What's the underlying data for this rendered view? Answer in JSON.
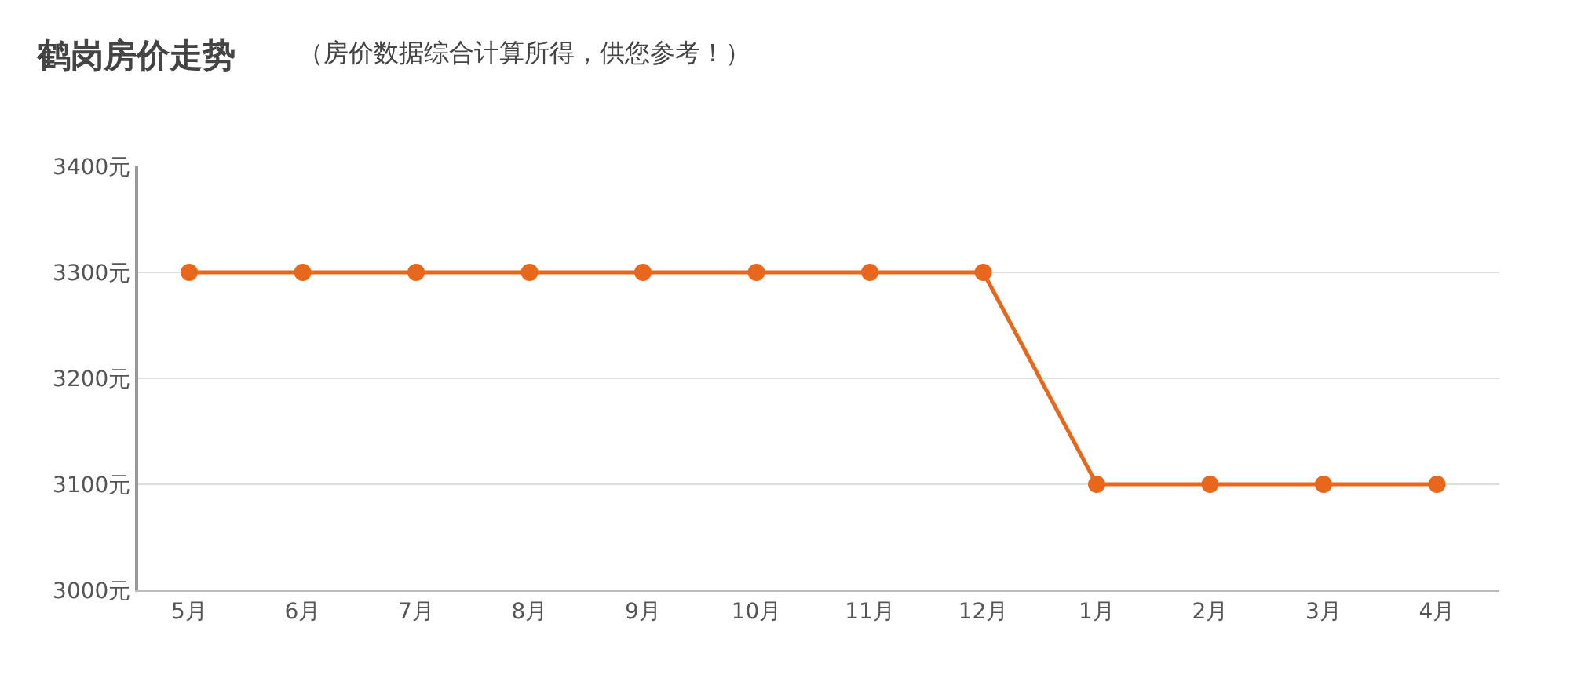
{
  "chart_data": {
    "type": "line",
    "title": "鹤岗房价走势",
    "subtitle": "（房价数据综合计算所得，供您参考！）",
    "categories": [
      "5月",
      "6月",
      "7月",
      "8月",
      "9月",
      "10月",
      "11月",
      "12月",
      "1月",
      "2月",
      "3月",
      "4月"
    ],
    "series": [
      {
        "color": "#e8671b",
        "values": [
          3300,
          3300,
          3300,
          3300,
          3300,
          3300,
          3300,
          3300,
          3100,
          3100,
          3100,
          3100
        ]
      }
    ],
    "ylim": [
      3000,
      3400
    ],
    "yticks": [
      {
        "value": 3000,
        "label": "3000元"
      },
      {
        "value": 3100,
        "label": "3100元"
      },
      {
        "value": 3200,
        "label": "3200元"
      },
      {
        "value": 3300,
        "label": "3300元"
      },
      {
        "value": 3400,
        "label": "3400元"
      }
    ],
    "grid": "y",
    "marker": "circle",
    "line_style": "solid"
  }
}
